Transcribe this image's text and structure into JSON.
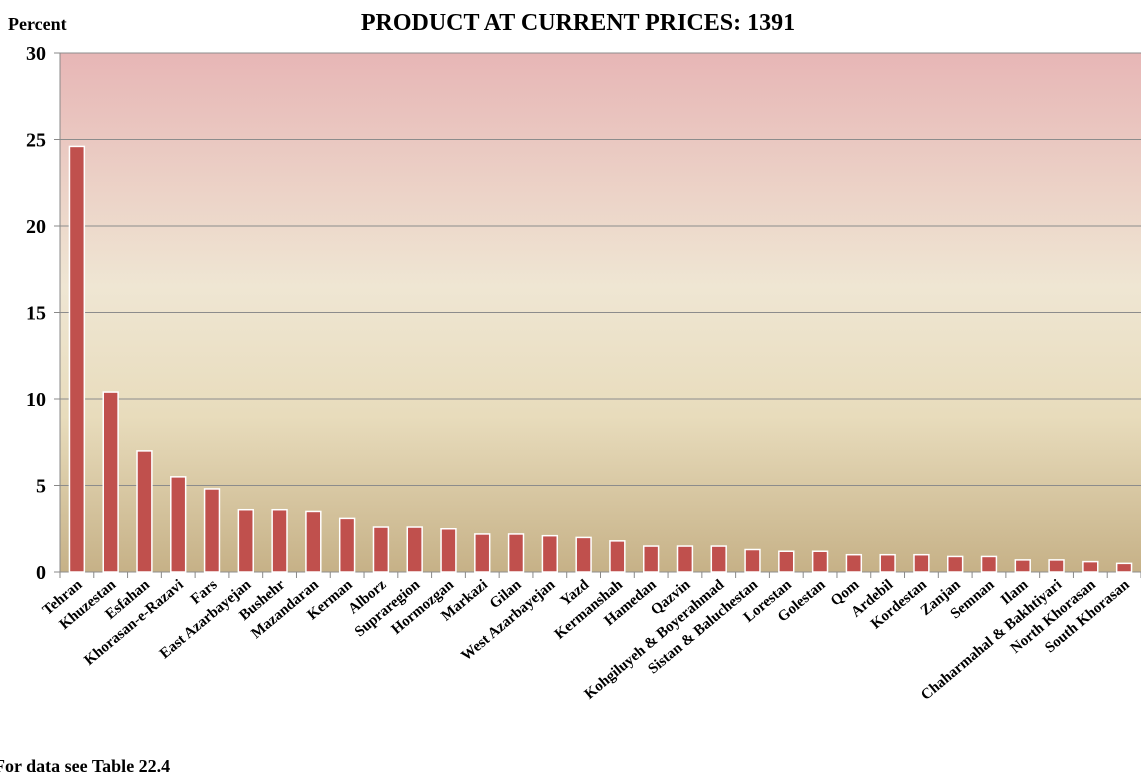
{
  "chart_data": {
    "type": "bar",
    "title": "PRODUCT AT CURRENT PRICES: 1391",
    "y_label": "Percent",
    "note": "For data see Table 22.4",
    "categories": [
      "Tehran",
      "Khuzestan",
      "Esfahan",
      "Khorasan-e-Razavi",
      "Fars",
      "East Azarbayejan",
      "Bushehr",
      "Mazandaran",
      "Kerman",
      "Alborz",
      "Supraregion",
      "Hormozgan",
      "Markazi",
      "Gilan",
      "West Azarbayejan",
      "Yazd",
      "Kermanshah",
      "Hamedan",
      "Qazvin",
      "Kohgiluyeh & Boyerahmad",
      "Sistan & Baluchestan",
      "Lorestan",
      "Golestan",
      "Qom",
      "Ardebil",
      "Kordestan",
      "Zanjan",
      "Semnan",
      "Ilam",
      "Chaharmahal & Bakhtiyari",
      "North Khorasan",
      "South Khorasan"
    ],
    "values": [
      24.6,
      10.4,
      7.0,
      5.5,
      4.8,
      3.6,
      3.6,
      3.5,
      3.1,
      2.6,
      2.6,
      2.5,
      2.2,
      2.2,
      2.1,
      2.0,
      1.8,
      1.5,
      1.5,
      1.5,
      1.3,
      1.2,
      1.2,
      1.0,
      1.0,
      1.0,
      0.9,
      0.9,
      0.7,
      0.7,
      0.6,
      0.5
    ],
    "color": "#c0504d",
    "ylim": [
      0,
      30
    ],
    "yticks": [
      0,
      5,
      10,
      15,
      20,
      25,
      30
    ],
    "grid": true
  }
}
